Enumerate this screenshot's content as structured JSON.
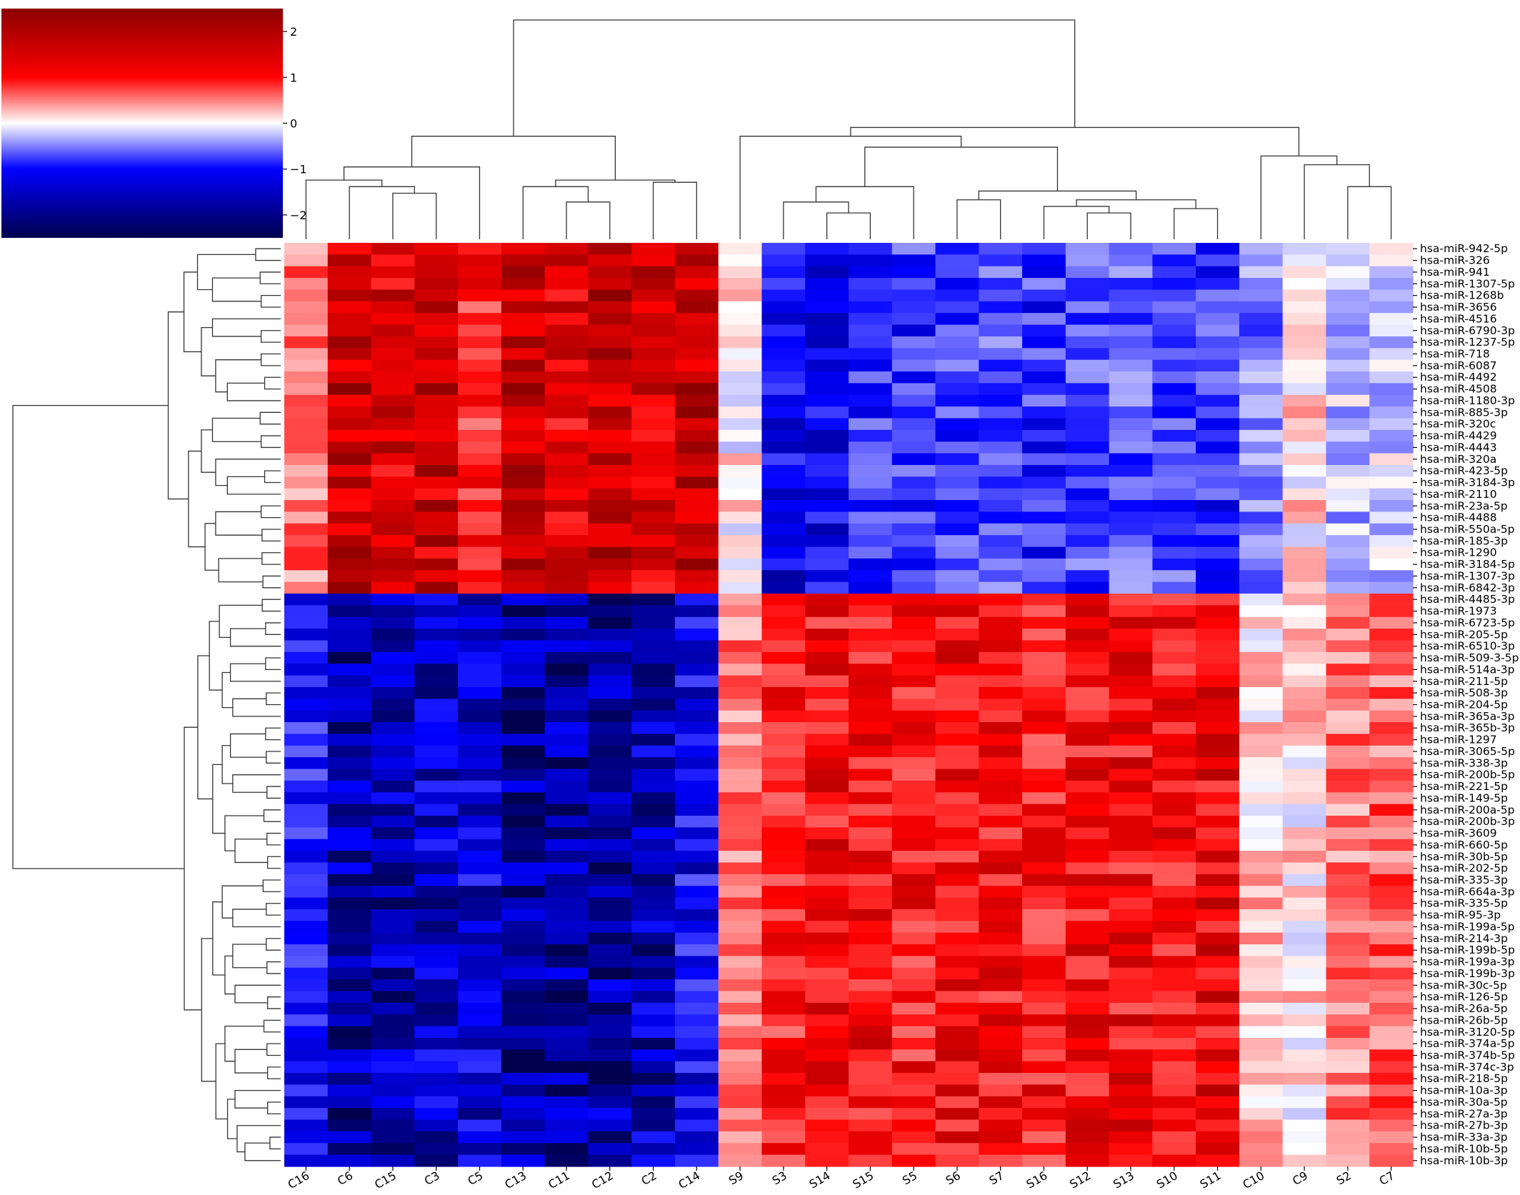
{
  "chart_data": {
    "type": "heatmap",
    "title": "",
    "xlabel": "",
    "ylabel": "",
    "colorbar": {
      "ticks": [
        2,
        1,
        0,
        -1,
        -2
      ],
      "tick_labels": [
        "2",
        "1",
        "0",
        "−1",
        "−2"
      ],
      "range": [
        -2.5,
        2.5
      ],
      "colormap": [
        "#00004d",
        "#0000ff",
        "#ffffff",
        "#ff0000",
        "#8b0000"
      ]
    },
    "columns": [
      "C16",
      "C6",
      "C15",
      "C3",
      "C5",
      "C13",
      "C11",
      "C12",
      "C2",
      "C14",
      "S9",
      "S3",
      "S14",
      "S15",
      "S5",
      "S6",
      "S7",
      "S16",
      "S12",
      "S13",
      "S10",
      "S11",
      "C10",
      "C9",
      "S2",
      "C7"
    ],
    "rows": [
      "hsa-miR-942-5p",
      "hsa-miR-326",
      "hsa-miR-941",
      "hsa-miR-1307-5p",
      "hsa-miR-1268b",
      "hsa-miR-3656",
      "hsa-miR-4516",
      "hsa-miR-6790-3p",
      "hsa-miR-1237-5p",
      "hsa-miR-718",
      "hsa-miR-6087",
      "hsa-miR-4492",
      "hsa-miR-4508",
      "hsa-miR-1180-3p",
      "hsa-miR-885-3p",
      "hsa-miR-320c",
      "hsa-miR-4429",
      "hsa-miR-4443",
      "hsa-miR-320a",
      "hsa-miR-423-5p",
      "hsa-miR-3184-3p",
      "hsa-miR-2110",
      "hsa-miR-23a-5p",
      "hsa-miR-4488",
      "hsa-miR-550a-5p",
      "hsa-miR-185-3p",
      "hsa-miR-1290",
      "hsa-miR-3184-5p",
      "hsa-miR-1307-3p",
      "hsa-miR-6842-3p",
      "hsa-miR-4485-3p",
      "hsa-miR-1973",
      "hsa-miR-6723-5p",
      "hsa-miR-205-5p",
      "hsa-miR-6510-3p",
      "hsa-miR-509-3-5p",
      "hsa-miR-514a-3p",
      "hsa-miR-211-5p",
      "hsa-miR-508-3p",
      "hsa-miR-204-5p",
      "hsa-miR-365a-3p",
      "hsa-miR-365b-3p",
      "hsa-miR-1297",
      "hsa-miR-3065-5p",
      "hsa-miR-338-3p",
      "hsa-miR-200b-5p",
      "hsa-miR-221-5p",
      "hsa-miR-149-5p",
      "hsa-miR-200a-5p",
      "hsa-miR-200b-3p",
      "hsa-miR-3609",
      "hsa-miR-660-5p",
      "hsa-miR-30b-5p",
      "hsa-miR-202-5p",
      "hsa-miR-335-3p",
      "hsa-miR-664a-3p",
      "hsa-miR-335-5p",
      "hsa-miR-95-3p",
      "hsa-miR-199a-5p",
      "hsa-miR-214-3p",
      "hsa-miR-199b-5p",
      "hsa-miR-199a-3p",
      "hsa-miR-199b-3p",
      "hsa-miR-30c-5p",
      "hsa-miR-126-5p",
      "hsa-miR-26a-5p",
      "hsa-miR-26b-5p",
      "hsa-miR-3120-5p",
      "hsa-miR-374a-5p",
      "hsa-miR-374b-5p",
      "hsa-miR-374c-3p",
      "hsa-miR-218-5p",
      "hsa-miR-10a-3p",
      "hsa-miR-30a-5p",
      "hsa-miR-27a-3p",
      "hsa-miR-27b-3p",
      "hsa-miR-33a-3p",
      "hsa-miR-10b-5p",
      "hsa-miR-10b-3p"
    ],
    "column_profiles": {
      "upper_block": [
        0.8,
        2.0,
        1.8,
        1.9,
        1.3,
        2.0,
        1.7,
        2.0,
        1.8,
        2.0,
        0.1,
        -1.6,
        -1.4,
        -1.2,
        -1.2,
        -1.1,
        -1.0,
        -1.2,
        -1.1,
        -1.0,
        -1.1,
        -1.2,
        -0.8,
        0.2,
        -0.4,
        -0.3
      ],
      "lower_block": [
        -1.3,
        -2.0,
        -1.9,
        -1.8,
        -1.7,
        -2.1,
        -2.0,
        -2.0,
        -1.9,
        -1.5,
        0.8,
        1.3,
        1.5,
        1.5,
        1.4,
        1.5,
        1.5,
        1.4,
        1.5,
        1.5,
        1.5,
        1.6,
        0.3,
        0.2,
        0.8,
        0.9
      ]
    },
    "upper_block_rows": 30,
    "value_range": [
      -2.5,
      2.5
    ]
  }
}
